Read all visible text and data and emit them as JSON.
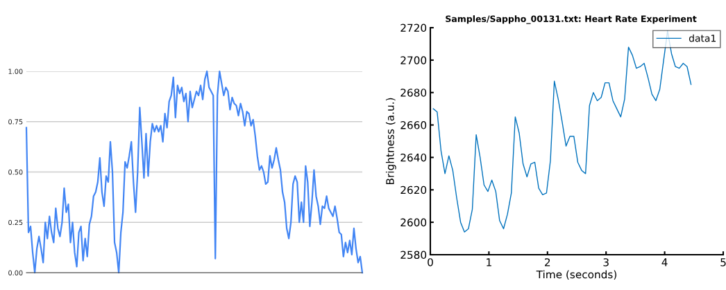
{
  "chart_data": [
    {
      "type": "line",
      "categories": [
        null,
        null,
        null,
        null,
        null,
        null,
        null,
        null,
        null,
        null,
        null,
        null,
        null,
        null,
        null,
        null,
        null,
        null,
        null,
        null,
        null,
        null,
        null,
        null,
        null,
        null,
        null,
        null,
        null,
        null,
        null,
        null,
        null,
        null,
        null,
        null,
        null,
        null,
        null,
        null,
        null,
        null,
        null,
        null,
        null,
        null,
        null,
        null,
        null,
        null,
        null,
        null,
        null,
        null,
        null,
        null,
        null,
        null,
        null,
        null,
        null,
        null,
        null,
        null,
        null,
        null,
        null,
        null,
        null,
        null,
        null,
        null,
        null,
        null,
        null,
        null,
        null,
        null,
        null,
        null,
        null,
        null,
        null,
        null,
        null,
        null,
        null,
        null,
        null,
        null,
        null,
        null,
        null,
        null,
        null,
        null,
        null,
        null,
        null,
        null,
        null,
        null,
        null,
        null,
        null,
        null,
        null,
        null,
        null,
        null,
        null,
        null,
        null,
        null,
        null,
        null,
        null,
        null,
        null,
        null,
        null,
        null,
        null,
        null,
        null,
        null,
        null,
        null,
        null,
        null,
        null,
        null,
        null,
        null,
        null,
        null,
        null,
        null,
        null,
        null,
        null,
        null,
        null,
        null,
        null,
        null,
        null,
        null,
        null,
        null,
        null,
        null,
        null,
        null,
        null,
        null,
        null,
        null,
        null,
        null,
        null
      ],
      "series": [
        {
          "color": "#4285f4",
          "values": [
            0.72,
            0.2,
            0.23,
            0.1,
            0.0,
            0.12,
            0.18,
            0.12,
            0.05,
            0.25,
            0.17,
            0.28,
            0.2,
            0.15,
            0.32,
            0.22,
            0.18,
            0.25,
            0.42,
            0.3,
            0.34,
            0.15,
            0.25,
            0.1,
            0.03,
            0.2,
            0.23,
            0.06,
            0.17,
            0.08,
            0.24,
            0.28,
            0.38,
            0.4,
            0.45,
            0.57,
            0.4,
            0.33,
            0.48,
            0.45,
            0.65,
            0.5,
            0.15,
            0.1,
            0.0,
            0.2,
            0.3,
            0.55,
            0.52,
            0.58,
            0.65,
            0.45,
            0.3,
            0.5,
            0.82,
            0.65,
            0.47,
            0.69,
            0.48,
            0.65,
            0.74,
            0.7,
            0.73,
            0.7,
            0.73,
            0.65,
            0.79,
            0.72,
            0.85,
            0.88,
            0.97,
            0.77,
            0.93,
            0.89,
            0.92,
            0.85,
            0.89,
            0.75,
            0.9,
            0.82,
            0.86,
            0.9,
            0.88,
            0.93,
            0.86,
            0.96,
            1.0,
            0.92,
            0.9,
            0.88,
            0.07,
            0.88,
            1.0,
            0.94,
            0.88,
            0.92,
            0.9,
            0.81,
            0.87,
            0.84,
            0.83,
            0.78,
            0.84,
            0.8,
            0.73,
            0.8,
            0.79,
            0.73,
            0.76,
            0.68,
            0.58,
            0.51,
            0.53,
            0.5,
            0.44,
            0.45,
            0.58,
            0.52,
            0.56,
            0.62,
            0.56,
            0.51,
            0.4,
            0.35,
            0.22,
            0.17,
            0.25,
            0.44,
            0.48,
            0.45,
            0.25,
            0.35,
            0.25,
            0.53,
            0.45,
            0.23,
            0.35,
            0.51,
            0.38,
            0.33,
            0.24,
            0.33,
            0.32,
            0.38,
            0.32,
            0.3,
            0.28,
            0.33,
            0.27,
            0.2,
            0.19,
            0.08,
            0.15,
            0.1,
            0.16,
            0.09,
            0.22,
            0.12,
            0.05,
            0.08,
            0.0
          ]
        }
      ],
      "ylim": [
        0,
        1
      ],
      "yticks": [
        {
          "value": 0,
          "label": "0.00"
        },
        {
          "value": 0.25,
          "label": "0.25"
        },
        {
          "value": 0.5,
          "label": "0.50"
        },
        {
          "value": 0.75,
          "label": "0.75"
        },
        {
          "value": 1,
          "label": "1.00"
        }
      ],
      "grid": "y",
      "tick_labels": "y"
    },
    {
      "type": "line",
      "title": "Samples/Sappho_00131.txt: Heart Rate Experiment",
      "xlabel": "Time (seconds)",
      "ylabel": "Brightness (a.u.)",
      "x": [
        0.05,
        0.117,
        0.183,
        0.25,
        0.317,
        0.383,
        0.45,
        0.517,
        0.583,
        0.65,
        0.717,
        0.783,
        0.85,
        0.917,
        0.983,
        1.05,
        1.117,
        1.183,
        1.25,
        1.317,
        1.383,
        1.45,
        1.517,
        1.583,
        1.65,
        1.717,
        1.783,
        1.85,
        1.917,
        1.983,
        2.05,
        2.117,
        2.183,
        2.25,
        2.317,
        2.383,
        2.45,
        2.517,
        2.583,
        2.65,
        2.717,
        2.783,
        2.85,
        2.917,
        2.983,
        3.05,
        3.117,
        3.183,
        3.25,
        3.317,
        3.383,
        3.45,
        3.517,
        3.583,
        3.65,
        3.717,
        3.783,
        3.85,
        3.917,
        3.983,
        4.05,
        4.117,
        4.183,
        4.25,
        4.317,
        4.383,
        4.45
      ],
      "series": [
        {
          "name": "data1",
          "color": "#0072bd",
          "values": [
            2670,
            2668,
            2644,
            2630,
            2641,
            2632,
            2615,
            2600,
            2594,
            2596,
            2608,
            2654,
            2640,
            2623,
            2619,
            2626,
            2619,
            2601,
            2596,
            2605,
            2618,
            2665,
            2655,
            2636,
            2628,
            2636,
            2637,
            2621,
            2617,
            2618,
            2638,
            2687,
            2676,
            2662,
            2647,
            2653,
            2653,
            2637,
            2632,
            2630,
            2672,
            2680,
            2675,
            2677,
            2686,
            2686,
            2675,
            2670,
            2665,
            2676,
            2708,
            2703,
            2695,
            2696,
            2698,
            2689,
            2679,
            2675,
            2682,
            2700,
            2718,
            2704,
            2696,
            2695,
            2698,
            2696,
            2685
          ]
        }
      ],
      "xlim": [
        0,
        5
      ],
      "xticks": [
        0,
        1,
        2,
        3,
        4,
        5
      ],
      "ylim": [
        2580,
        2720
      ],
      "yticks": [
        2580,
        2600,
        2620,
        2640,
        2660,
        2680,
        2700,
        2720
      ],
      "grid": false,
      "legend": "top right"
    }
  ]
}
